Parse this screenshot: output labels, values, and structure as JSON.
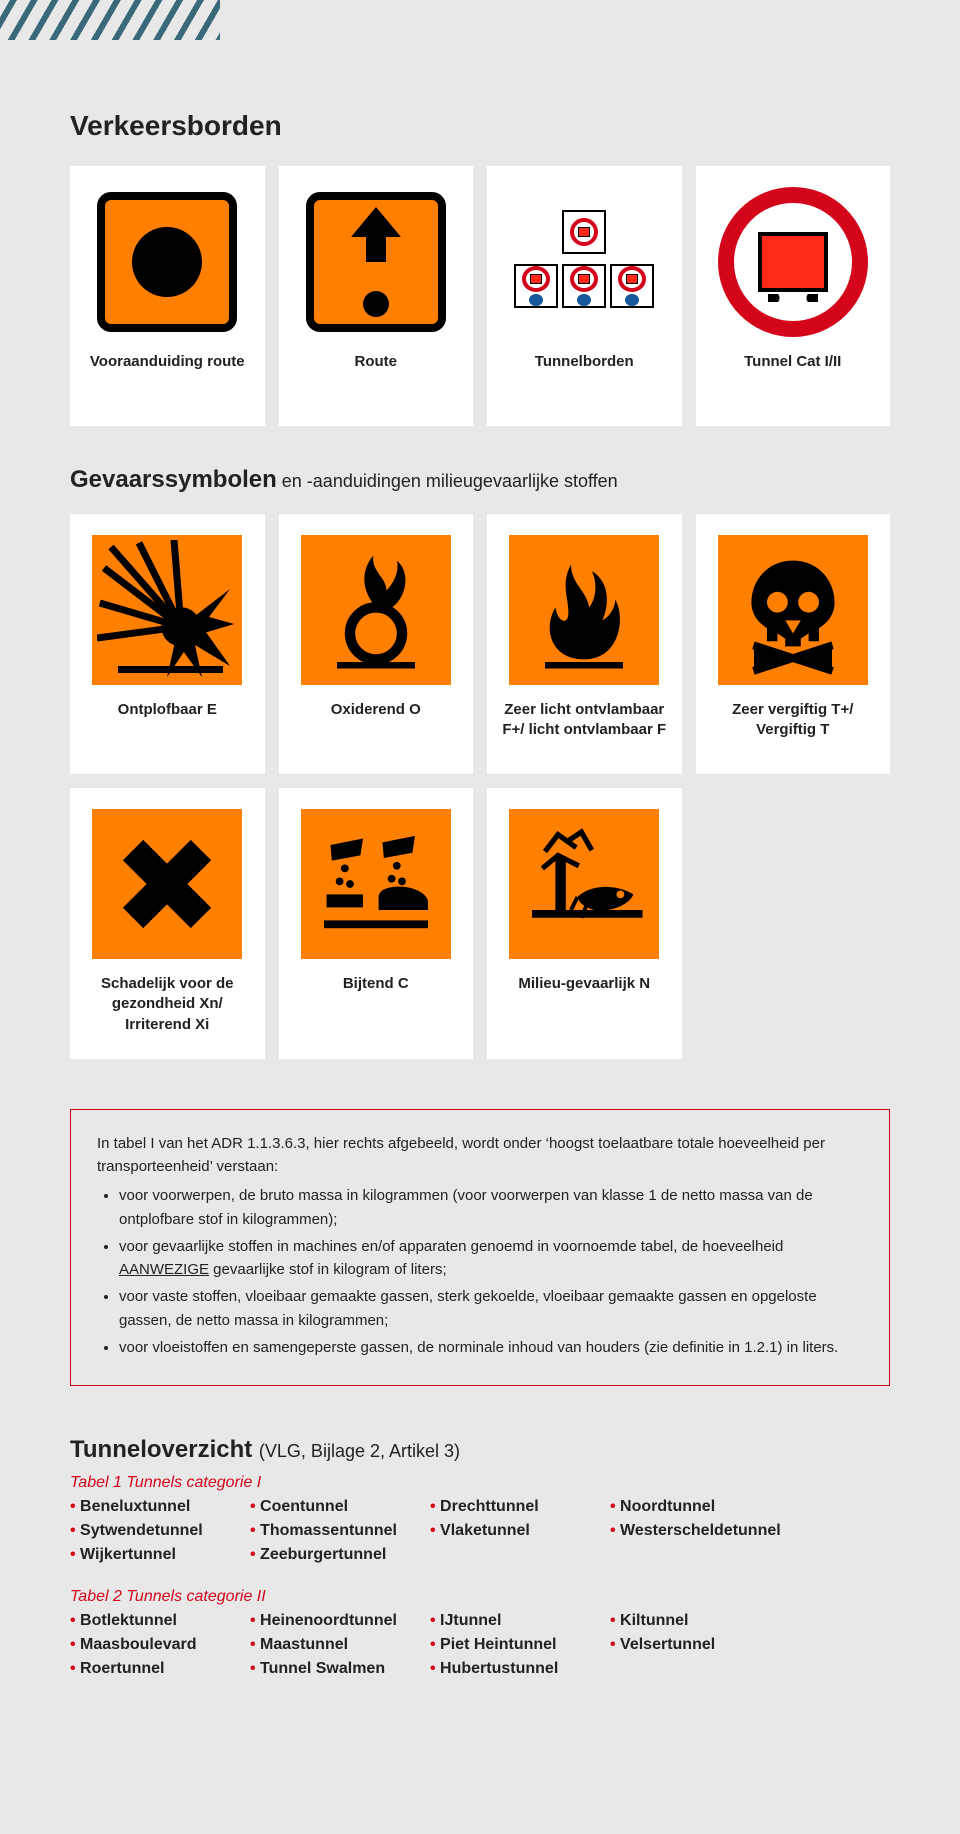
{
  "colors": {
    "page_bg": "#e8e8e8",
    "card_bg": "#ffffff",
    "orange": "#ff7f00",
    "black": "#000000",
    "red": "#d4051b",
    "truck_red": "#ff2a1a",
    "hatch": "#3a6a7a"
  },
  "sections": {
    "verkeersborden": {
      "title": "Verkeersborden",
      "cards": [
        {
          "label": "Vooraanduiding route",
          "icon": "orange-square-dot"
        },
        {
          "label": "Route",
          "icon": "orange-square-arrow"
        },
        {
          "label": "Tunnelborden",
          "icon": "tunnel-boards"
        },
        {
          "label": "Tunnel Cat I/II",
          "icon": "prohibition-truck"
        }
      ]
    },
    "gevaarssymbolen": {
      "title_strong": "Gevaarssymbolen",
      "title_rest": " en -aanduidingen milieugevaarlijke stoffen",
      "row1": [
        {
          "label": "Ontplofbaar E",
          "icon": "explosive"
        },
        {
          "label": "Oxiderend O",
          "icon": "oxidizing"
        },
        {
          "label": "Zeer licht ontvlambaar F+/ licht ontvlambaar F",
          "icon": "flammable"
        },
        {
          "label": "Zeer vergiftig T+/ Vergiftig T",
          "icon": "toxic"
        }
      ],
      "row2": [
        {
          "label": "Schadelijk voor de gezondheid Xn/ Irriterend Xi",
          "icon": "harmful"
        },
        {
          "label": "Bijtend C",
          "icon": "corrosive"
        },
        {
          "label": "Milieu-gevaarlijk N",
          "icon": "environment"
        }
      ]
    },
    "infobox": {
      "intro": "In tabel I van het ADR 1.1.3.6.3, hier rechts afgebeeld, wordt onder ‘hoogst toelaatbare totale hoeveelheid per transporteenheid’ verstaan:",
      "bullets": [
        "voor voorwerpen, de bruto massa in kilogrammen (voor voorwerpen van klasse 1 de netto massa van de ontplofbare stof in kilogrammen);",
        "voor gevaarlijke stoffen in machines en/of apparaten genoemd in voornoemde tabel, de hoeveelheid AANWEZIGE gevaarlijke stof in kilogram of liters;",
        "voor vaste stoffen, vloeibaar gemaakte gassen, sterk gekoelde, vloeibaar gemaakte gassen en opgeloste gassen, de netto massa in kilogrammen;",
        "voor vloeistoffen en samengeperste gassen, de norminale inhoud van houders (zie definitie in 1.2.1) in liters."
      ],
      "underline_word": "AANWEZIGE"
    },
    "tunneloverzicht": {
      "title": "Tunneloverzicht",
      "subtitle": "(VLG, Bijlage 2, Artikel 3)",
      "tables": [
        {
          "header": "Tabel 1 Tunnels categorie I",
          "items": [
            "Beneluxtunnel",
            "Coentunnel",
            "Drechttunnel",
            "Noordtunnel",
            "Sytwendetunnel",
            "Thomassentunnel",
            "Vlaketunnel",
            "Westerscheldetunnel",
            "Wijkertunnel",
            "Zeeburgertunnel"
          ]
        },
        {
          "header": "Tabel 2 Tunnels categorie II",
          "items": [
            "Botlektunnel",
            "Heinenoordtunnel",
            "IJtunnel",
            "Kiltunnel",
            "Maasboulevard",
            "Maastunnel",
            "Piet Heintunnel",
            "Velsertunnel",
            "Roertunnel",
            "Tunnel Swalmen",
            "Hubertustunnel"
          ]
        }
      ]
    }
  }
}
